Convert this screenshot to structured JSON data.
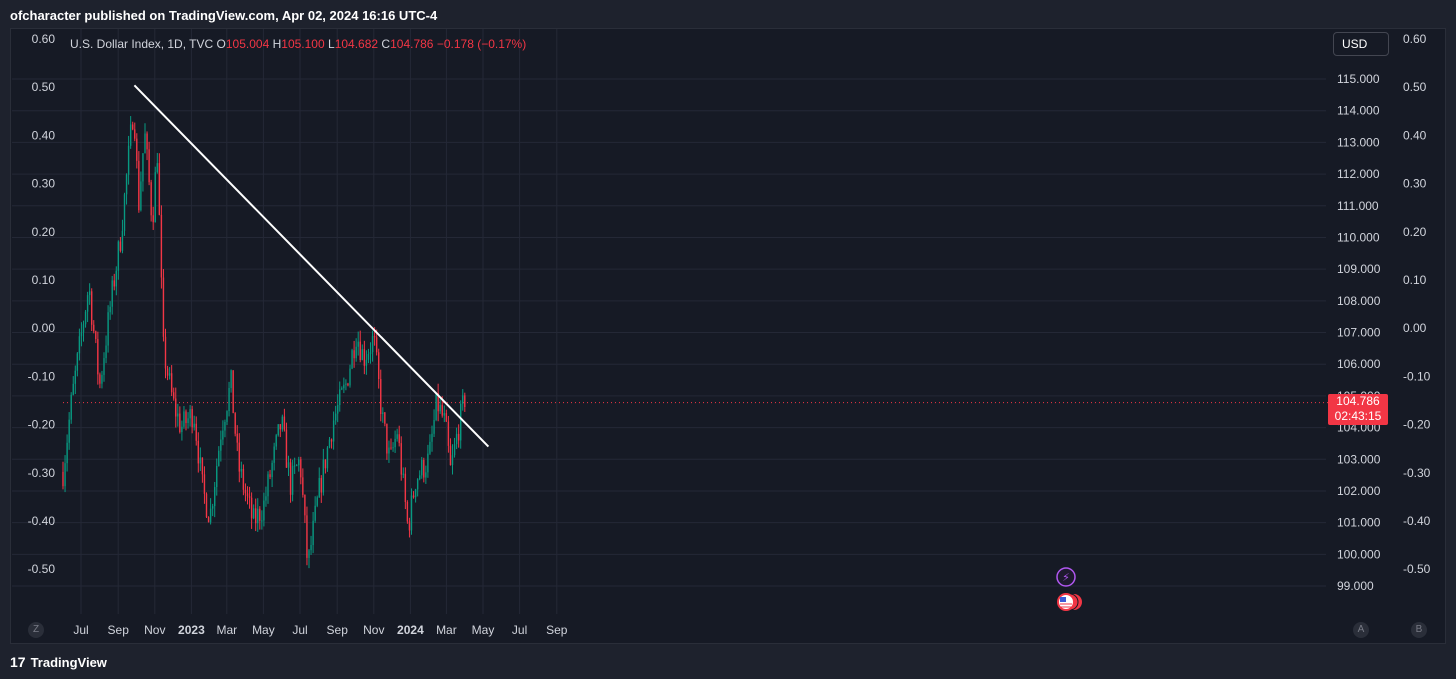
{
  "header": {
    "publisher_line": "ofcharacter published on TradingView.com, Apr 02, 2024 16:16 UTC-4"
  },
  "legend": {
    "symbol": "U.S. Dollar Index, 1D, TVC",
    "o_label": "O",
    "o_value": "105.004",
    "h_label": "H",
    "h_value": "105.100",
    "l_label": "L",
    "l_value": "104.682",
    "c_label": "C",
    "c_value": "104.786",
    "change": "−0.178 (−0.17%)"
  },
  "currency_button": "USD",
  "last_price": {
    "value": "104.786",
    "countdown": "02:43:15"
  },
  "footer": {
    "logo_mark": "17",
    "logo_text": "TradingView"
  },
  "scale_buttons": {
    "left": "Z",
    "auto": "A",
    "log": "B"
  },
  "colors": {
    "up": "#089981",
    "down": "#f23645",
    "trendline": "#ffffff",
    "background": "#161a25",
    "grid": "#242836"
  },
  "chart_data": {
    "type": "candlestick",
    "series": [
      {
        "name": "U.S. Dollar Index, 1D, TVC"
      }
    ],
    "x_ticks": [
      "Jul",
      "Sep",
      "Nov",
      "2023",
      "Mar",
      "May",
      "Jul",
      "Sep",
      "Nov",
      "2024",
      "Mar",
      "May",
      "Jul",
      "Sep"
    ],
    "y_right_ticks": [
      "115.000",
      "114.000",
      "113.000",
      "112.000",
      "111.000",
      "110.000",
      "109.000",
      "108.000",
      "107.000",
      "106.000",
      "105.000",
      "104.000",
      "103.000",
      "102.000",
      "101.000",
      "100.000",
      "99.000"
    ],
    "y_pct_ticks": [
      "0.60",
      "0.50",
      "0.40",
      "0.30",
      "0.20",
      "0.10",
      "0.00",
      "-0.10",
      "-0.20",
      "-0.30",
      "-0.40",
      "-0.50"
    ],
    "ylim": [
      98.2,
      116.0
    ],
    "path": [
      {
        "date": "2022-06-01",
        "price": 102.6
      },
      {
        "date": "2022-06-15",
        "price": 104.8
      },
      {
        "date": "2022-07-14",
        "price": 108.5
      },
      {
        "date": "2022-08-01",
        "price": 105.3
      },
      {
        "date": "2022-08-20",
        "price": 108.0
      },
      {
        "date": "2022-09-05",
        "price": 110.0
      },
      {
        "date": "2022-09-27",
        "price": 114.2
      },
      {
        "date": "2022-10-05",
        "price": 111.0
      },
      {
        "date": "2022-10-15",
        "price": 113.3
      },
      {
        "date": "2022-10-28",
        "price": 110.5
      },
      {
        "date": "2022-11-05",
        "price": 112.8
      },
      {
        "date": "2022-11-15",
        "price": 106.5
      },
      {
        "date": "2022-12-01",
        "price": 104.8
      },
      {
        "date": "2022-12-15",
        "price": 104.0
      },
      {
        "date": "2023-01-05",
        "price": 104.5
      },
      {
        "date": "2023-01-20",
        "price": 102.0
      },
      {
        "date": "2023-02-01",
        "price": 101.2
      },
      {
        "date": "2023-02-20",
        "price": 104.0
      },
      {
        "date": "2023-03-08",
        "price": 105.4
      },
      {
        "date": "2023-03-20",
        "price": 102.8
      },
      {
        "date": "2023-04-14",
        "price": 101.0
      },
      {
        "date": "2023-05-01",
        "price": 101.5
      },
      {
        "date": "2023-05-31",
        "price": 104.2
      },
      {
        "date": "2023-06-15",
        "price": 102.2
      },
      {
        "date": "2023-07-01",
        "price": 103.0
      },
      {
        "date": "2023-07-14",
        "price": 99.6
      },
      {
        "date": "2023-08-01",
        "price": 101.9
      },
      {
        "date": "2023-08-25",
        "price": 104.2
      },
      {
        "date": "2023-09-15",
        "price": 105.3
      },
      {
        "date": "2023-10-03",
        "price": 107.0
      },
      {
        "date": "2023-10-15",
        "price": 106.2
      },
      {
        "date": "2023-11-01",
        "price": 106.8
      },
      {
        "date": "2023-11-15",
        "price": 104.3
      },
      {
        "date": "2023-11-28",
        "price": 102.9
      },
      {
        "date": "2023-12-10",
        "price": 103.9
      },
      {
        "date": "2023-12-28",
        "price": 100.8
      },
      {
        "date": "2024-01-10",
        "price": 102.4
      },
      {
        "date": "2024-02-01",
        "price": 103.0
      },
      {
        "date": "2024-02-14",
        "price": 104.8
      },
      {
        "date": "2024-02-28",
        "price": 104.1
      },
      {
        "date": "2024-03-08",
        "price": 102.6
      },
      {
        "date": "2024-03-20",
        "price": 103.9
      },
      {
        "date": "2024-04-01",
        "price": 104.95
      }
    ],
    "trendline": {
      "start": {
        "date": "2022-09-28",
        "price": 114.8
      },
      "end": {
        "date": "2024-05-10",
        "price": 103.4
      }
    },
    "last_price_line": 104.786
  }
}
